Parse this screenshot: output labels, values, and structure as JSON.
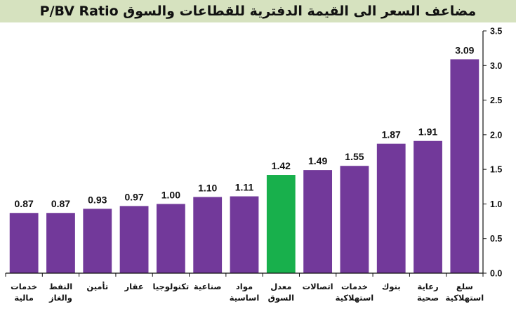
{
  "chart_data": {
    "type": "bar",
    "title": "مضاعف السعر الى القيمة الدفترية للقطاعات والسوق P/BV Ratio",
    "categories": [
      [
        "خدمات",
        "مالية"
      ],
      [
        "النفط",
        "والغاز"
      ],
      [
        "تأمين"
      ],
      [
        "عقار"
      ],
      [
        "تكنولوجيا"
      ],
      [
        "صناعية"
      ],
      [
        "مواد",
        "اساسية"
      ],
      [
        "معدل",
        "السوق"
      ],
      [
        "اتصالات"
      ],
      [
        "خدمات",
        "استهلاكية"
      ],
      [
        "بنوك"
      ],
      [
        "رعاية",
        "صحية"
      ],
      [
        "سلع",
        "استهلاكية"
      ]
    ],
    "values": [
      0.87,
      0.87,
      0.93,
      0.97,
      1.0,
      1.1,
      1.11,
      1.42,
      1.49,
      1.55,
      1.87,
      1.91,
      3.09
    ],
    "value_labels": [
      "0.87",
      "0.87",
      "0.93",
      "0.97",
      "1.00",
      "1.10",
      "1.11",
      "1.42",
      "1.49",
      "1.55",
      "1.87",
      "1.91",
      "3.09"
    ],
    "highlight_index": 7,
    "ylim": [
      0,
      3.5
    ],
    "yticks": [
      "0.0",
      "0.5",
      "1.0",
      "1.5",
      "2.0",
      "2.5",
      "3.0",
      "3.5"
    ],
    "y_axis_side": "right",
    "grid": false,
    "colors": {
      "bar": "#72399a",
      "highlight": "#18b04c",
      "title_bg": "#d6e2bf",
      "axis": "#111111"
    }
  }
}
